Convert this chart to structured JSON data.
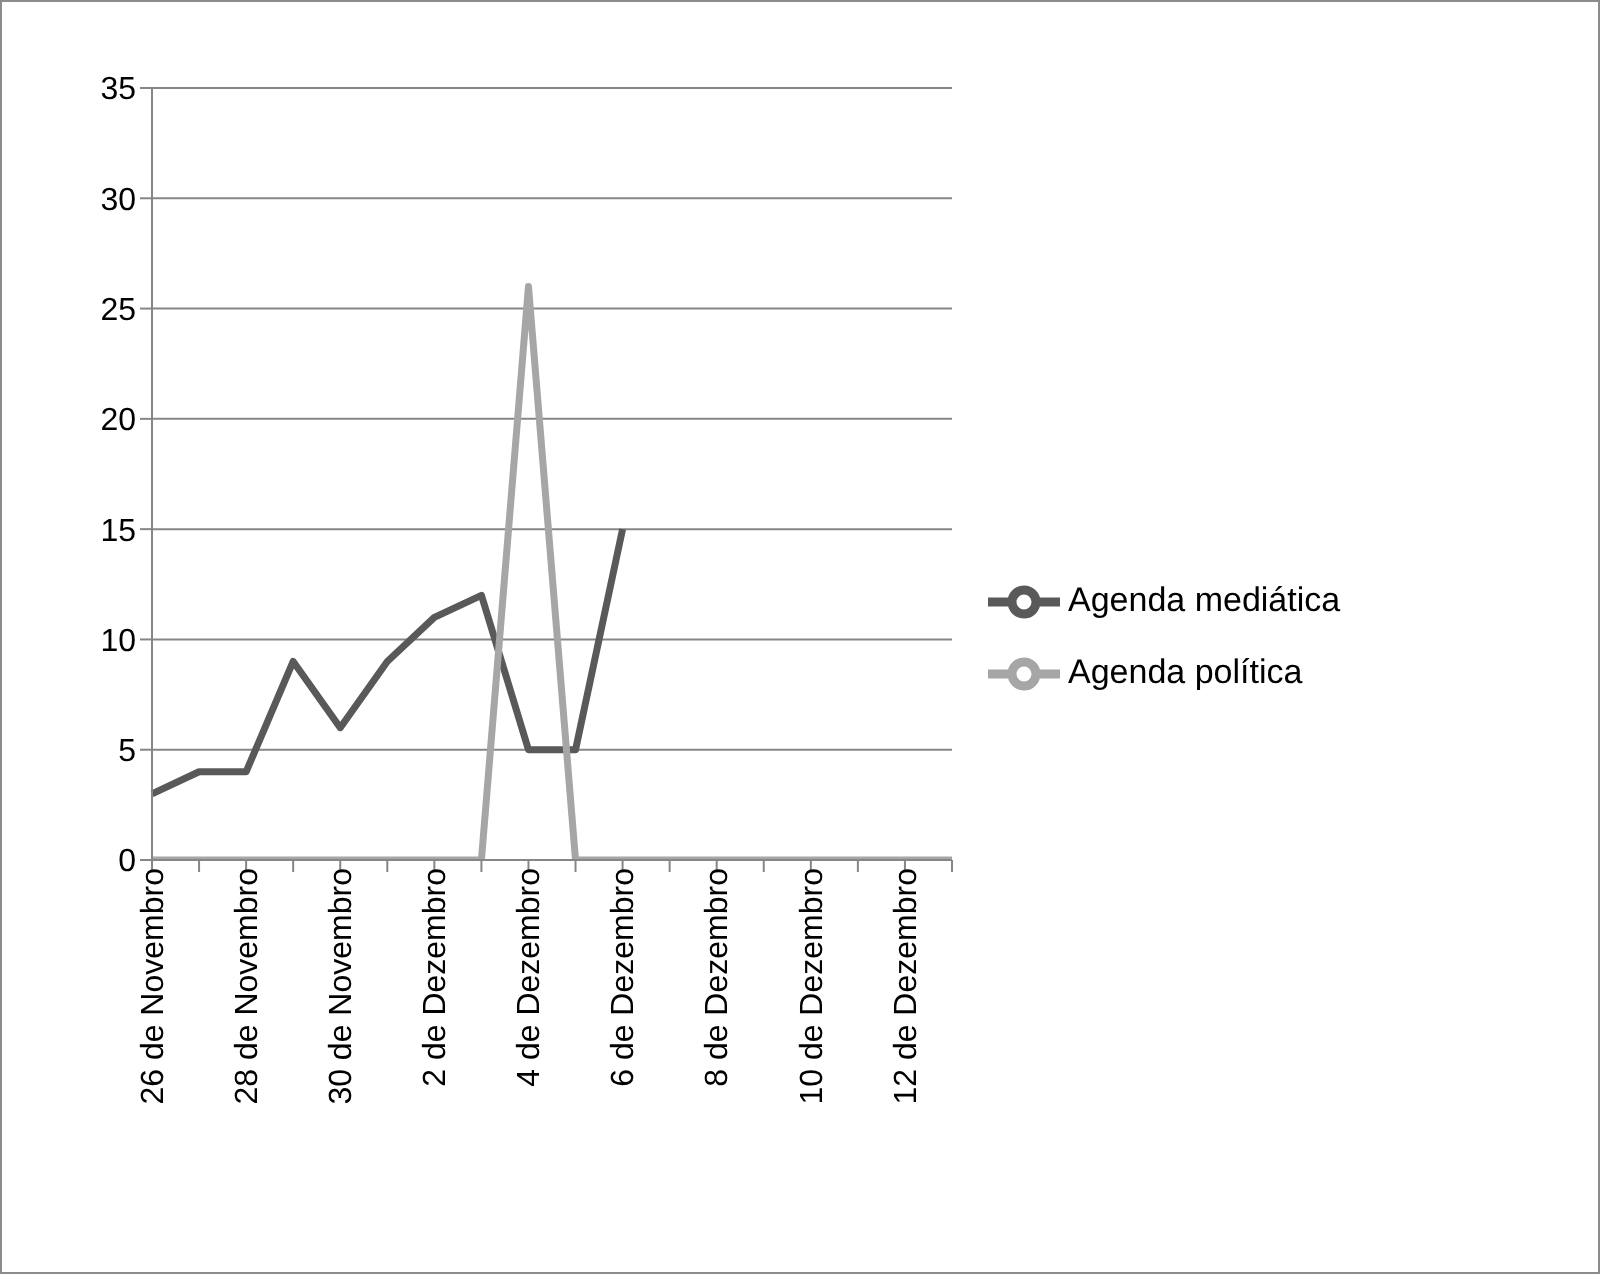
{
  "chart_data": {
    "type": "line",
    "categories": [
      "26 de Novembro",
      null,
      "28 de Novembro",
      null,
      "30 de Novembro",
      null,
      "2 de Dezembro",
      null,
      "4 de Dezembro",
      null,
      "6 de Dezembro",
      null,
      "8 de Dezembro",
      null,
      "10 de Dezembro",
      null,
      "12 de Dezembro",
      null
    ],
    "series": [
      {
        "name": "Agenda mediática",
        "color": "#595959",
        "values": [
          3,
          4,
          4,
          9,
          6,
          9,
          11,
          12,
          5,
          5,
          15,
          null,
          null,
          null,
          null,
          null,
          null,
          null
        ]
      },
      {
        "name": "Agenda política",
        "color": "#a6a6a6",
        "values": [
          0,
          0,
          0,
          0,
          0,
          0,
          0,
          0,
          26,
          0,
          0,
          0,
          0,
          0,
          0,
          0,
          0,
          0
        ]
      }
    ],
    "ylim": [
      0,
      35
    ],
    "yticks": [
      0,
      5,
      10,
      15,
      20,
      25,
      30,
      35
    ],
    "grid": "y",
    "legend": "right",
    "marker": "none",
    "line_style": "solid"
  }
}
